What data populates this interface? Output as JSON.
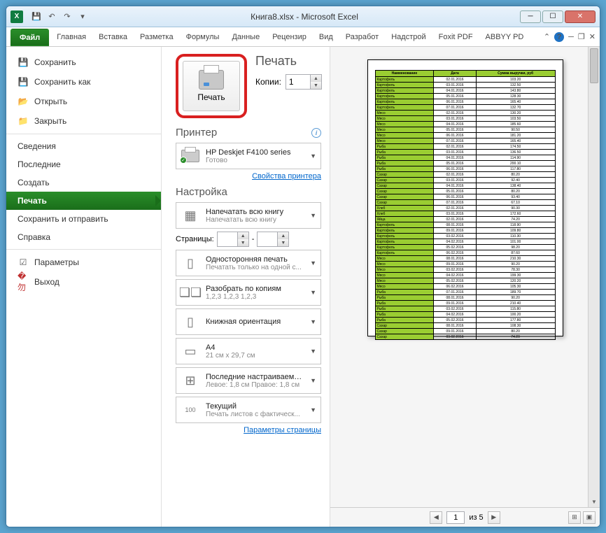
{
  "window": {
    "title": "Книга8.xlsx - Microsoft Excel"
  },
  "tabs": {
    "file": "Файл",
    "items": [
      "Главная",
      "Вставка",
      "Разметка",
      "Формулы",
      "Данные",
      "Рецензир",
      "Вид",
      "Разработ",
      "Надстрой",
      "Foxit PDF",
      "ABBYY PD"
    ]
  },
  "nav": {
    "save": "Сохранить",
    "saveas": "Сохранить как",
    "open": "Открыть",
    "close": "Закрыть",
    "info": "Сведения",
    "recent": "Последние",
    "new": "Создать",
    "print": "Печать",
    "share": "Сохранить и отправить",
    "help": "Справка",
    "options": "Параметры",
    "exit": "Выход"
  },
  "print": {
    "title": "Печать",
    "button": "Печать",
    "copies_label": "Копии:",
    "copies_value": "1",
    "printer_head": "Принтер",
    "printer_name": "HP Deskjet F4100 series",
    "printer_status": "Готово",
    "printer_props": "Свойства принтера",
    "settings_head": "Настройка",
    "print_what_title": "Напечатать всю книгу",
    "print_what_sub": "Напечатать всю книгу",
    "pages_label": "Страницы:",
    "pages_sep": "-",
    "sided_title": "Односторонняя печать",
    "sided_sub": "Печатать только на одной с...",
    "collate_title": "Разобрать по копиям",
    "collate_sub": "1,2,3   1,2,3   1,2,3",
    "orient_title": "Книжная ориентация",
    "size_title": "A4",
    "size_sub": "21 см x 29,7 см",
    "margins_title": "Последние настраиваемые ...",
    "margins_sub": "Левое: 1,8 см   Правое: 1,8 см",
    "scaling_title": "Текущий",
    "scaling_sub": "Печать листов с фактическ...",
    "page_setup": "Параметры страницы"
  },
  "preview": {
    "headers": [
      "Наименование",
      "Дата",
      "Сумма выручки, руб"
    ],
    "rows": [
      [
        "Картофель",
        "02.01.2016",
        "103.20"
      ],
      [
        "Картофель",
        "03.01.2016",
        "132.50"
      ],
      [
        "Картофель",
        "04.01.2016",
        "143.80"
      ],
      [
        "Картофель",
        "05.01.2016",
        "128.30"
      ],
      [
        "Картофель",
        "06.01.2016",
        "165.40"
      ],
      [
        "Картофель",
        "07.01.2016",
        "132.70"
      ],
      [
        "Мясо",
        "02.01.2016",
        "130.20"
      ],
      [
        "Мясо",
        "03.01.2016",
        "103.50"
      ],
      [
        "Мясо",
        "04.01.2016",
        "185.60"
      ],
      [
        "Мясо",
        "05.01.2016",
        "90.50"
      ],
      [
        "Мясо",
        "06.01.2016",
        "181.20"
      ],
      [
        "Мясо",
        "07.01.2016",
        "165.40"
      ],
      [
        "Рыба",
        "02.01.2016",
        "174.50"
      ],
      [
        "Рыба",
        "03.01.2016",
        "136.50"
      ],
      [
        "Рыба",
        "04.01.2016",
        "114.90"
      ],
      [
        "Рыба",
        "05.01.2016",
        "200.10"
      ],
      [
        "Рыба",
        "06.01.2016",
        "117.80"
      ],
      [
        "Сахар",
        "02.01.2016",
        "80.20"
      ],
      [
        "Сахар",
        "03.01.2016",
        "92.40"
      ],
      [
        "Сахар",
        "04.01.2016",
        "138.40"
      ],
      [
        "Сахар",
        "05.01.2016",
        "80.20"
      ],
      [
        "Сахар",
        "06.01.2016",
        "93.40"
      ],
      [
        "Сахар",
        "07.01.2016",
        "67.10"
      ],
      [
        "Хлеб",
        "02.01.2016",
        "90.30"
      ],
      [
        "Хлеб",
        "03.01.2016",
        "172.60"
      ],
      [
        "Яйца",
        "02.01.2016",
        "74.20"
      ],
      [
        "Картофель",
        "08.01.2016",
        "118.90"
      ],
      [
        "Картофель",
        "09.01.2016",
        "109.80"
      ],
      [
        "Картофель",
        "03.02.2016",
        "110.30"
      ],
      [
        "Картофель",
        "04.02.2016",
        "101.00"
      ],
      [
        "Картофель",
        "05.02.2016",
        "98.20"
      ],
      [
        "Картофель",
        "06.02.2016",
        "87.60"
      ],
      [
        "Мясо",
        "08.01.2016",
        "210.30"
      ],
      [
        "Мясо",
        "09.01.2016",
        "90.20"
      ],
      [
        "Мясо",
        "03.02.2016",
        "78.30"
      ],
      [
        "Мясо",
        "04.02.2016",
        "199.30"
      ],
      [
        "Мясо",
        "05.02.2016",
        "120.20"
      ],
      [
        "Мясо",
        "06.02.2016",
        "105.30"
      ],
      [
        "Рыба",
        "07.01.2016",
        "189.70"
      ],
      [
        "Рыба",
        "08.01.2016",
        "90.20"
      ],
      [
        "Рыба",
        "09.01.2016",
        "210.40"
      ],
      [
        "Рыба",
        "03.02.2016",
        "115.80"
      ],
      [
        "Рыба",
        "04.02.2016",
        "100.20"
      ],
      [
        "Рыба",
        "05.02.2016",
        "177.80"
      ],
      [
        "Сахар",
        "08.01.2016",
        "108.30"
      ],
      [
        "Сахар",
        "09.01.2016",
        "80.20"
      ],
      [
        "Сахар",
        "03.02.2016",
        "74.20"
      ]
    ],
    "page_current": "1",
    "page_of": "из 5"
  },
  "colors": {
    "highlight_border": "#d92020",
    "active_nav": "#1a6e1a",
    "table_header_bg": "#9acd32"
  }
}
